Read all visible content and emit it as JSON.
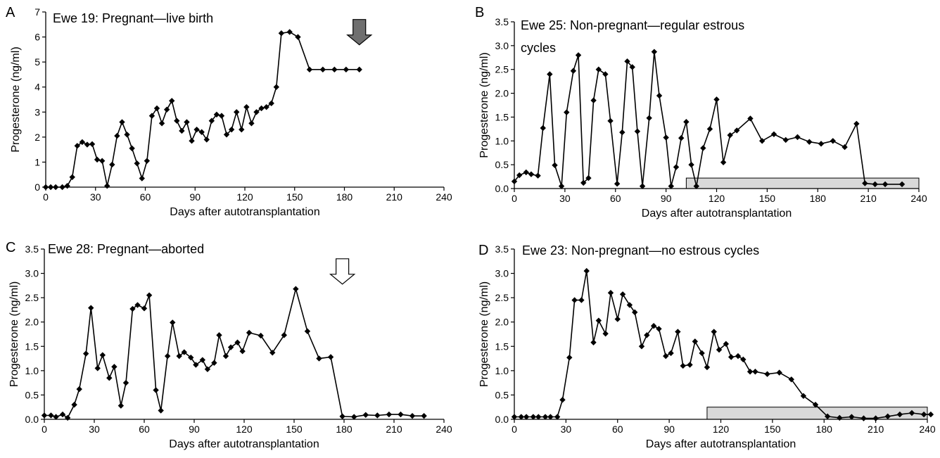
{
  "chart_data": [
    {
      "type": "line",
      "panel_letter": "A",
      "title": "Ewe 19: Pregnant—live birth",
      "xlabel": "Days after autotransplantation",
      "ylabel": "Progesterone (ng/ml)",
      "xlim": [
        0,
        240
      ],
      "ylim": [
        0,
        7
      ],
      "xticks": [
        "0",
        "30",
        "60",
        "90",
        "120",
        "150",
        "180",
        "210",
        "240"
      ],
      "yticks": [
        "0",
        "1",
        "2",
        "3",
        "4",
        "5",
        "6",
        "7"
      ],
      "grid": false,
      "marker": "diamond",
      "annotations": [
        {
          "kind": "filled-down-arrow",
          "x": 189,
          "y": 6.7,
          "color": "#6f6f6f"
        }
      ],
      "series": [
        {
          "x": [
            0,
            3,
            6,
            10,
            13,
            16,
            19,
            22,
            25,
            28,
            31,
            34,
            37,
            40,
            43,
            46,
            49,
            52,
            55,
            58,
            61,
            64,
            67,
            70,
            73,
            76,
            79,
            82,
            85,
            88,
            91,
            94,
            97,
            100,
            103,
            106,
            109,
            112,
            115,
            118,
            121,
            124,
            127,
            130,
            133,
            136,
            139,
            142,
            147,
            152,
            159,
            167,
            174,
            181,
            189
          ],
          "y": [
            0,
            0,
            0,
            0,
            0.05,
            0.4,
            1.65,
            1.8,
            1.7,
            1.72,
            1.1,
            1.05,
            0.05,
            0.9,
            2.05,
            2.6,
            2.1,
            1.55,
            0.95,
            0.35,
            1.05,
            2.85,
            3.15,
            2.55,
            3.1,
            3.45,
            2.65,
            2.25,
            2.6,
            1.85,
            2.3,
            2.2,
            1.9,
            2.65,
            2.9,
            2.85,
            2.1,
            2.3,
            3.0,
            2.3,
            3.2,
            2.55,
            3.0,
            3.15,
            3.2,
            3.35,
            4.0,
            6.15,
            6.2,
            6.0,
            4.7,
            4.7,
            4.7,
            4.7,
            4.7
          ]
        }
      ]
    },
    {
      "type": "line",
      "panel_letter": "B",
      "title": "Ewe 25: Non-pregnant—regular estrous cycles",
      "xlabel": "Days after autotransplantation",
      "ylabel": "Progesterone (ng/ml)",
      "xlim": [
        0,
        240
      ],
      "ylim": [
        0,
        3.5
      ],
      "xticks": [
        "0",
        "30",
        "60",
        "90",
        "120",
        "150",
        "180",
        "210",
        "240"
      ],
      "yticks": [
        "0.0",
        "0.5",
        "1.0",
        "1.5",
        "2.0",
        "2.5",
        "3.0",
        "3.5"
      ],
      "grid": false,
      "marker": "diamond",
      "shaded_range": {
        "x": [
          102,
          240
        ],
        "y": [
          0,
          0.22
        ],
        "color": "#d9d9d9"
      },
      "series": [
        {
          "x": [
            0,
            3,
            7,
            10,
            14,
            17,
            21,
            24,
            28,
            31,
            35,
            38,
            41,
            44,
            47,
            50,
            54,
            57,
            61,
            64,
            67,
            70,
            73,
            76,
            80,
            83,
            86,
            90,
            93,
            96,
            99,
            102,
            105,
            108,
            112,
            116,
            120,
            124,
            128,
            132,
            140,
            147,
            154,
            161,
            168,
            175,
            182,
            189,
            196,
            203,
            208,
            214,
            220,
            230
          ],
          "y": [
            0.15,
            0.28,
            0.34,
            0.3,
            0.27,
            1.27,
            2.4,
            0.49,
            0.05,
            1.6,
            2.47,
            2.8,
            0.12,
            0.22,
            1.85,
            2.5,
            2.4,
            1.42,
            0.1,
            1.18,
            2.67,
            2.55,
            1.2,
            0.05,
            1.48,
            2.87,
            1.95,
            1.07,
            0.05,
            0.45,
            1.06,
            1.4,
            0.5,
            0.05,
            0.85,
            1.25,
            1.87,
            0.55,
            1.12,
            1.22,
            1.47,
            1.0,
            1.14,
            1.02,
            1.08,
            0.98,
            0.94,
            1.0,
            0.87,
            1.36,
            0.11,
            0.09,
            0.09,
            0.09
          ]
        }
      ]
    },
    {
      "type": "line",
      "panel_letter": "C",
      "title": "Ewe 28: Pregnant—aborted",
      "xlabel": "Days after autotransplantation",
      "ylabel": "Progesterone (ng/ml)",
      "xlim": [
        0,
        240
      ],
      "ylim": [
        0,
        3.5
      ],
      "xticks": [
        "0",
        "30",
        "60",
        "90",
        "120",
        "150",
        "180",
        "210",
        "240"
      ],
      "yticks": [
        "0.0",
        "0.5",
        "1.0",
        "1.5",
        "2.0",
        "2.5",
        "3.0",
        "3.5"
      ],
      "grid": false,
      "marker": "diamond",
      "annotations": [
        {
          "kind": "open-down-arrow",
          "x": 179,
          "y": 3.3,
          "color": "#ffffff"
        }
      ],
      "series": [
        {
          "x": [
            0,
            4,
            7,
            11,
            14,
            18,
            21,
            25,
            28,
            32,
            35,
            39,
            42,
            46,
            49,
            53,
            56,
            60,
            63,
            67,
            70,
            74,
            77,
            81,
            84,
            88,
            91,
            95,
            98,
            102,
            105,
            109,
            112,
            116,
            119,
            123,
            130,
            137,
            144,
            151,
            158,
            165,
            172,
            179,
            186,
            193,
            200,
            207,
            214,
            221,
            228
          ],
          "y": [
            0.08,
            0.08,
            0.05,
            0.1,
            0.03,
            0.3,
            0.62,
            1.35,
            2.29,
            1.05,
            1.32,
            0.85,
            1.08,
            0.28,
            0.75,
            2.27,
            2.35,
            2.28,
            2.55,
            0.6,
            0.18,
            1.3,
            1.99,
            1.3,
            1.38,
            1.27,
            1.12,
            1.22,
            1.03,
            1.16,
            1.73,
            1.3,
            1.48,
            1.58,
            1.4,
            1.78,
            1.72,
            1.37,
            1.73,
            2.68,
            1.81,
            1.25,
            1.28,
            0.06,
            0.05,
            0.09,
            0.08,
            0.1,
            0.1,
            0.07,
            0.07
          ]
        }
      ]
    },
    {
      "type": "line",
      "panel_letter": "D",
      "title": "Ewe 23: Non-pregnant—no estrous cycles",
      "xlabel": "Days after autotransplantation",
      "ylabel": "Progesterone (ng/ml)",
      "xlim": [
        0,
        240
      ],
      "ylim": [
        0,
        3.5
      ],
      "xticks": [
        "0",
        "30",
        "60",
        "90",
        "120",
        "150",
        "180",
        "210",
        "240"
      ],
      "yticks": [
        "0.0",
        "0.5",
        "1.0",
        "1.5",
        "2.0",
        "2.5",
        "3.0",
        "3.5"
      ],
      "grid": false,
      "marker": "diamond",
      "shaded_range": {
        "x": [
          112,
          240
        ],
        "y": [
          0,
          0.25
        ],
        "color": "#d9d9d9"
      },
      "series": [
        {
          "x": [
            0,
            4,
            7,
            11,
            14,
            18,
            21,
            25,
            28,
            32,
            35,
            39,
            42,
            46,
            49,
            53,
            56,
            60,
            63,
            67,
            70,
            74,
            77,
            81,
            84,
            88,
            91,
            95,
            98,
            102,
            105,
            109,
            112,
            116,
            119,
            123,
            126,
            130,
            133,
            137,
            140,
            147,
            154,
            161,
            168,
            175,
            182,
            189,
            196,
            203,
            210,
            217,
            224,
            231,
            238,
            242
          ],
          "y": [
            0.05,
            0.05,
            0.05,
            0.05,
            0.05,
            0.05,
            0.05,
            0.05,
            0.4,
            1.27,
            2.45,
            2.45,
            3.05,
            1.58,
            2.03,
            1.76,
            2.6,
            2.06,
            2.57,
            2.35,
            2.2,
            1.5,
            1.73,
            1.92,
            1.86,
            1.3,
            1.36,
            1.8,
            1.1,
            1.12,
            1.6,
            1.36,
            1.07,
            1.8,
            1.43,
            1.55,
            1.28,
            1.3,
            1.23,
            0.98,
            0.98,
            0.93,
            0.96,
            0.82,
            0.48,
            0.3,
            0.06,
            0.03,
            0.05,
            0.02,
            0.02,
            0.06,
            0.1,
            0.13,
            0.1,
            0.1
          ]
        }
      ]
    }
  ]
}
